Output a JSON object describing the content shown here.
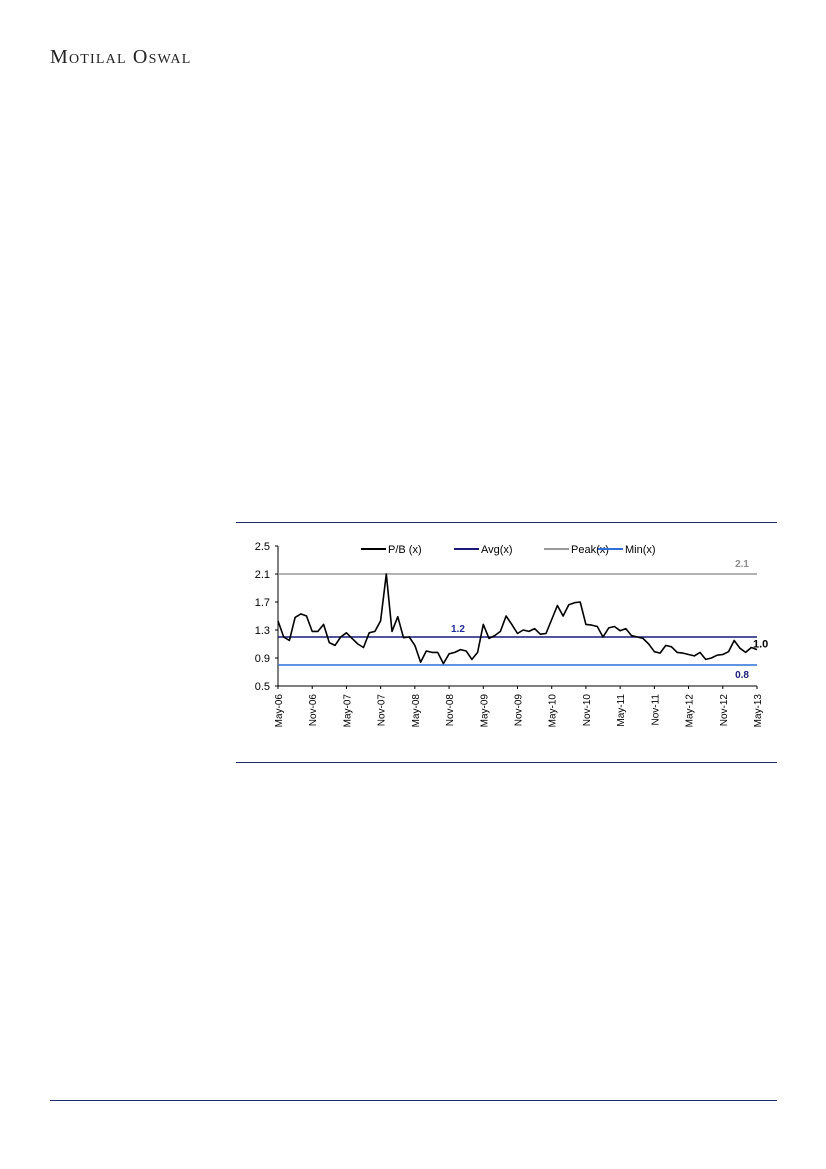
{
  "header": {
    "brand": "Motilal Oswal"
  },
  "chart_data": {
    "type": "line",
    "ylim": [
      0.5,
      2.5
    ],
    "yticks": [
      "2.5",
      "2.1",
      "1.7",
      "1.3",
      "0.9",
      "0.5"
    ],
    "xticks": [
      "May-06",
      "Nov-06",
      "May-07",
      "Nov-07",
      "May-08",
      "Nov-08",
      "May-09",
      "Nov-09",
      "May-10",
      "Nov-10",
      "May-11",
      "Nov-11",
      "May-12",
      "Nov-12",
      "May-13"
    ],
    "legend_position": "top",
    "grid": false,
    "series": [
      {
        "name": "P/B (x)",
        "color": "#000000",
        "values": [
          1.43,
          1.2,
          1.15,
          1.48,
          1.53,
          1.5,
          1.28,
          1.28,
          1.38,
          1.12,
          1.08,
          1.2,
          1.26,
          1.18,
          1.1,
          1.05,
          1.26,
          1.28,
          1.43,
          2.1,
          1.28,
          1.49,
          1.19,
          1.2,
          1.08,
          0.84,
          1.0,
          0.98,
          0.98,
          0.82,
          0.96,
          0.98,
          1.02,
          1.0,
          0.88,
          0.98,
          1.38,
          1.18,
          1.22,
          1.28,
          1.5,
          1.38,
          1.25,
          1.3,
          1.28,
          1.32,
          1.24,
          1.25,
          1.45,
          1.65,
          1.5,
          1.66,
          1.69,
          1.7,
          1.38,
          1.37,
          1.35,
          1.2,
          1.33,
          1.35,
          1.29,
          1.32,
          1.22,
          1.2,
          1.18,
          1.1,
          0.99,
          0.97,
          1.08,
          1.06,
          0.98,
          0.97,
          0.95,
          0.93,
          0.98,
          0.88,
          0.9,
          0.94,
          0.95,
          0.99,
          1.15,
          1.04,
          0.98,
          1.05,
          1.02
        ]
      },
      {
        "name": "Avg(x)",
        "color": "#1a1a7a",
        "constant": 1.2,
        "label": "1.2",
        "label_color": "#1f2a9a"
      },
      {
        "name": "Peak(x)",
        "color": "#999999",
        "constant": 2.1,
        "label": "2.1",
        "label_color": "#8c8c8c"
      },
      {
        "name": "Min(x)",
        "color": "#2e6fd8",
        "constant": 0.8,
        "label": "0.8",
        "label_color": "#1a1a7a"
      }
    ],
    "end_label": "1.0"
  }
}
